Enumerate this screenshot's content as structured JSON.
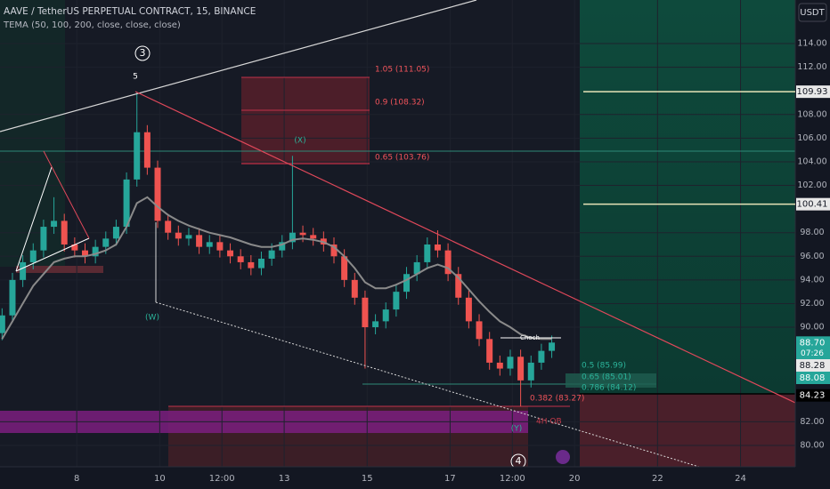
{
  "chart_data": {
    "type": "candlestick",
    "title": "AAVE / TetherUS PERPETUAL CONTRACT, 15, BINANCE",
    "indicator": "TEMA (50, 100, 200, close, close, close)",
    "currency": "USDT",
    "x": [
      6.2,
      6.45,
      6.7,
      6.95,
      7.2,
      7.45,
      7.7,
      7.95,
      8.2,
      8.45,
      8.7,
      8.95,
      9.2,
      9.45,
      9.7,
      9.95,
      10.2,
      10.45,
      10.7,
      10.95,
      11.2,
      11.45,
      11.7,
      11.95,
      12.2,
      12.45,
      12.7,
      12.95,
      13.2,
      13.45,
      13.7,
      13.95,
      14.2,
      14.45,
      14.7,
      14.95,
      15.2,
      15.45,
      15.7,
      15.95,
      16.2,
      16.45,
      16.7,
      16.95,
      17.2,
      17.45,
      17.7,
      17.95,
      18.2,
      18.45,
      18.7,
      18.95,
      19.2,
      19.45
    ],
    "open": [
      89.5,
      91.0,
      94.0,
      95.5,
      96.5,
      98.5,
      99.0,
      97.0,
      96.5,
      96.0,
      96.8,
      97.5,
      98.5,
      102.5,
      106.5,
      103.5,
      99.0,
      98.0,
      97.5,
      97.8,
      96.8,
      97.2,
      96.5,
      96.0,
      95.5,
      95.0,
      95.8,
      96.5,
      97.2,
      98.0,
      97.8,
      97.5,
      97.0,
      96.0,
      94.0,
      92.5,
      90.0,
      90.5,
      91.5,
      93.0,
      94.5,
      95.5,
      97.0,
      96.5,
      94.5,
      92.5,
      90.5,
      89.0,
      87.0,
      86.5,
      87.5,
      85.5,
      87.0,
      88.0
    ],
    "high": [
      91.6,
      94.6,
      96.1,
      97.1,
      99.1,
      101.0,
      99.6,
      97.6,
      97.1,
      97.4,
      98.1,
      99.1,
      103.1,
      109.9,
      107.1,
      104.1,
      99.6,
      98.6,
      98.4,
      98.4,
      97.8,
      97.8,
      97.1,
      96.6,
      96.1,
      96.4,
      97.1,
      97.8,
      104.5,
      98.6,
      98.4,
      98.1,
      97.6,
      96.6,
      94.6,
      93.1,
      91.1,
      92.1,
      93.6,
      95.1,
      96.1,
      97.6,
      98.2,
      97.1,
      95.1,
      93.1,
      91.1,
      89.6,
      87.6,
      88.1,
      88.1,
      87.6,
      88.6,
      89.3
    ],
    "low": [
      88.9,
      90.4,
      93.4,
      94.9,
      95.9,
      97.9,
      96.4,
      95.9,
      95.4,
      95.4,
      96.2,
      96.9,
      97.9,
      101.9,
      102.9,
      98.4,
      97.4,
      96.9,
      96.9,
      96.2,
      96.2,
      95.9,
      95.4,
      94.9,
      94.4,
      94.4,
      95.2,
      95.9,
      96.6,
      97.2,
      96.9,
      96.4,
      95.4,
      93.4,
      91.9,
      86.5,
      89.4,
      89.9,
      90.9,
      92.4,
      93.9,
      94.9,
      95.9,
      93.9,
      91.9,
      89.9,
      88.4,
      86.4,
      85.9,
      85.9,
      83.3,
      84.9,
      86.4,
      87.4
    ],
    "close": [
      91.0,
      94.0,
      95.5,
      96.5,
      98.5,
      99.0,
      97.0,
      96.5,
      96.0,
      96.8,
      97.5,
      98.5,
      102.5,
      106.5,
      103.5,
      99.0,
      98.0,
      97.5,
      97.8,
      96.8,
      97.2,
      96.5,
      96.0,
      95.5,
      95.0,
      95.8,
      96.5,
      97.2,
      98.0,
      97.8,
      97.5,
      97.0,
      96.0,
      94.0,
      92.5,
      90.0,
      90.5,
      91.5,
      93.0,
      94.5,
      95.5,
      97.0,
      96.5,
      94.5,
      92.5,
      90.5,
      89.0,
      87.0,
      86.5,
      87.5,
      85.5,
      87.0,
      88.0,
      88.7
    ],
    "tema": [
      89.0,
      90.5,
      92.0,
      93.5,
      94.5,
      95.5,
      95.8,
      96.0,
      96.0,
      96.2,
      96.5,
      97.0,
      98.5,
      100.5,
      101.0,
      100.2,
      99.5,
      99.0,
      98.6,
      98.3,
      98.0,
      97.8,
      97.6,
      97.3,
      97.0,
      96.8,
      96.8,
      97.0,
      97.4,
      97.5,
      97.4,
      97.2,
      96.8,
      96.0,
      95.0,
      93.8,
      93.3,
      93.3,
      93.6,
      94.0,
      94.5,
      95.0,
      95.3,
      95.0,
      94.2,
      93.2,
      92.2,
      91.3,
      90.5,
      90.0,
      89.4,
      89.1,
      89.0,
      89.0
    ],
    "up_color": "#26a69a",
    "down_color": "#ef5350",
    "tema_color": "#8a8a8a",
    "xlim": [
      6.15,
      25.32
    ],
    "ylim": [
      78.19,
      117.69
    ],
    "xticks": [
      8,
      10,
      {
        "value": 11.5,
        "label": "12:00"
      },
      13,
      15,
      17,
      {
        "value": 18.5,
        "label": "12:00"
      },
      20,
      22,
      24
    ],
    "yticks": [
      {
        "value": 80,
        "label": "80.00"
      },
      {
        "value": 82,
        "label": "82.00"
      },
      {
        "value": 90,
        "label": "90.00"
      },
      {
        "value": 92,
        "label": "92.00"
      },
      {
        "value": 94,
        "label": "94.00"
      },
      {
        "value": 96,
        "label": "96.00"
      },
      {
        "value": 98,
        "label": "98.00"
      },
      {
        "value": 102,
        "label": "102.00"
      },
      {
        "value": 104,
        "label": "104.00"
      },
      {
        "value": 106,
        "label": "106.00"
      },
      {
        "value": 108,
        "label": "108.00"
      },
      {
        "value": 112,
        "label": "112.00"
      },
      {
        "value": 114,
        "label": "114.00"
      }
    ],
    "grid": true,
    "levels": [
      {
        "value": 109.93,
        "label": "109.93"
      },
      {
        "value": 100.41,
        "label": "100.41"
      }
    ],
    "price_labels": [
      {
        "value": 88.7,
        "label": "88.70"
      },
      {
        "value": 88.28,
        "label": "88.28"
      },
      {
        "value": 88.08,
        "label": "88.08"
      },
      {
        "value": 84.23,
        "label": "84.23"
      }
    ],
    "countdown": "07:26",
    "annotations": [
      "3",
      "5",
      "(X)",
      "(W)",
      "(Y)",
      "4",
      "Choch",
      "1.05 (111.05)",
      "0.9 (108.32)",
      "0.65 (103.76)",
      "0.5 (85.99)",
      "0.65 (85.01)",
      "0.786 (84.12)",
      "0.382 (83.27)",
      "4H OB"
    ]
  }
}
